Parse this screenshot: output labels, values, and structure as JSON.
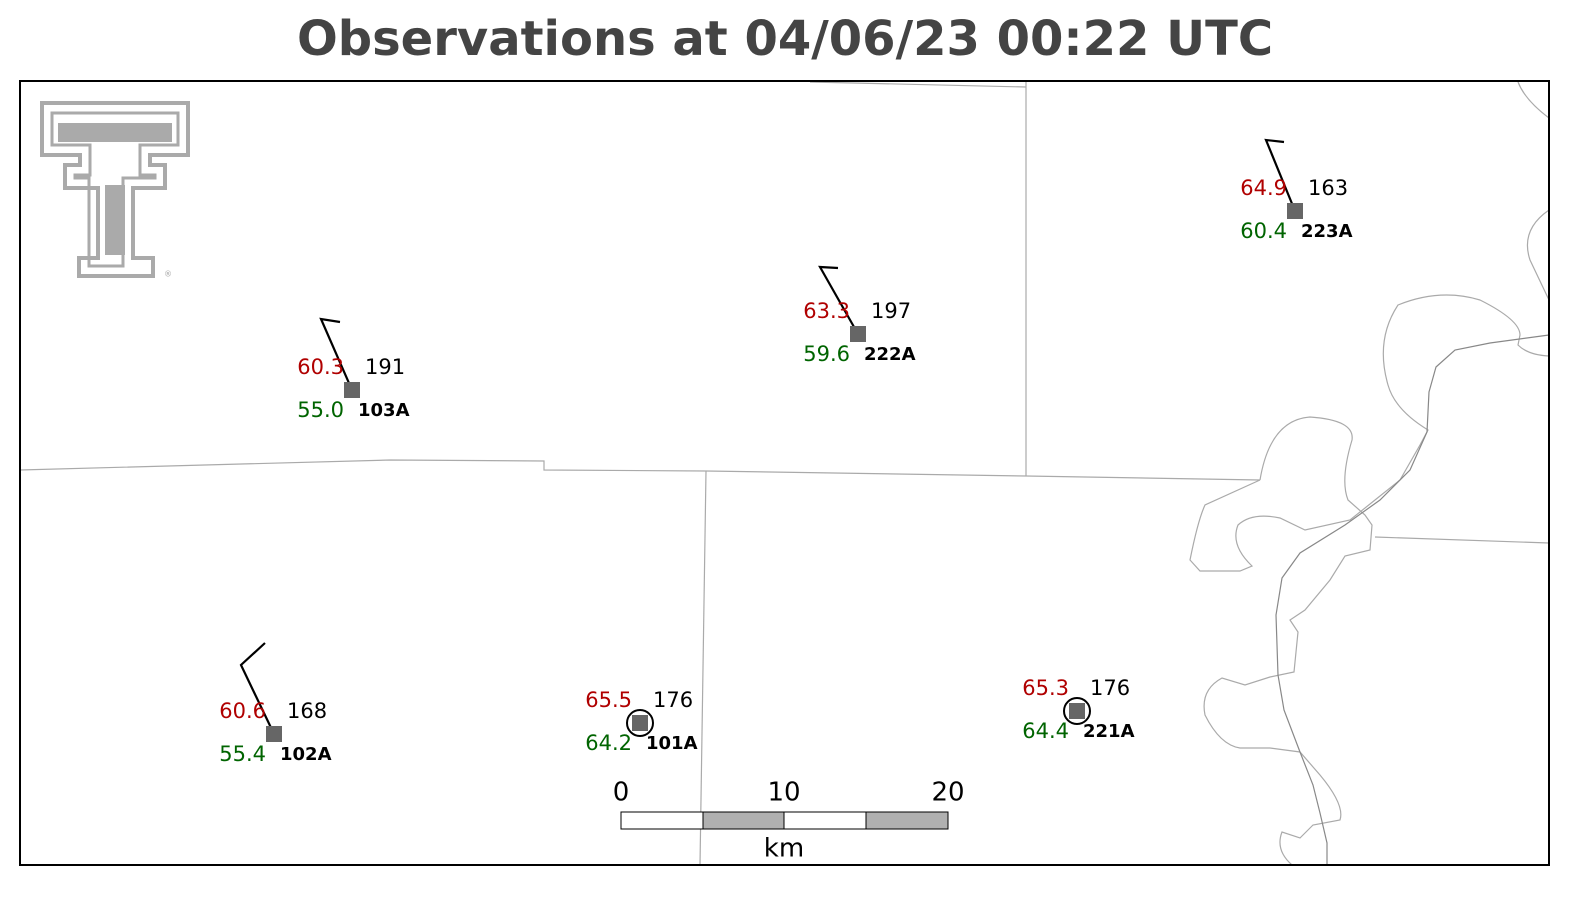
{
  "title": "Observations at 04/06/23 00:22 UTC",
  "stations": [
    {
      "id": "103A",
      "temperature": "60.3",
      "dewpoint": "55.0",
      "pressure": "191"
    },
    {
      "id": "222A",
      "temperature": "63.3",
      "dewpoint": "59.6",
      "pressure": "197"
    },
    {
      "id": "223A",
      "temperature": "64.9",
      "dewpoint": "60.4",
      "pressure": "163"
    },
    {
      "id": "102A",
      "temperature": "60.6",
      "dewpoint": "55.4",
      "pressure": "168"
    },
    {
      "id": "101A",
      "temperature": "65.5",
      "dewpoint": "64.2",
      "pressure": "176"
    },
    {
      "id": "221A",
      "temperature": "65.3",
      "dewpoint": "64.4",
      "pressure": "176"
    }
  ],
  "scale_bar": {
    "labels": [
      "0",
      "10",
      "20"
    ],
    "unit": "km"
  }
}
